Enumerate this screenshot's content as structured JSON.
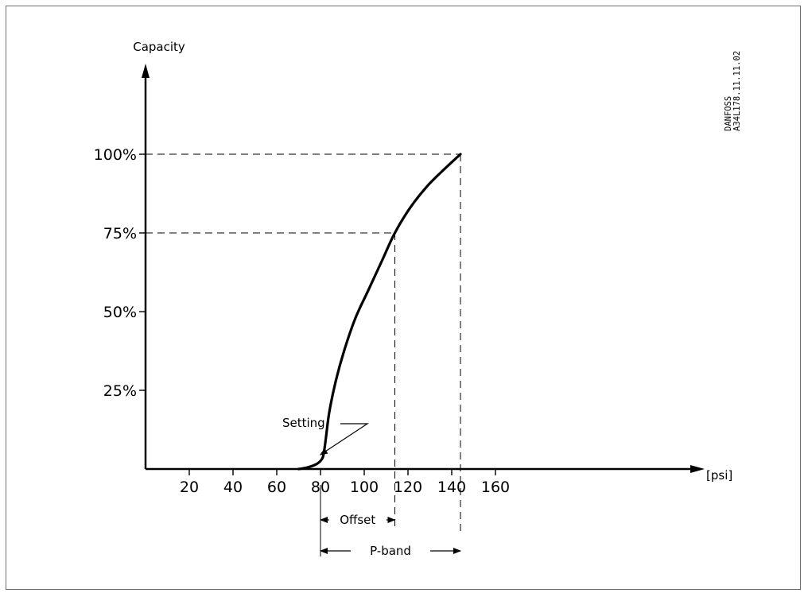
{
  "chart_data": {
    "type": "line",
    "ylabel": "Capacity",
    "xunit": "[psi]",
    "x_ticks": [
      20,
      40,
      60,
      80,
      100,
      120,
      140,
      160
    ],
    "y_ticks": [
      "25%",
      "50%",
      "75%",
      "100%"
    ],
    "xlim": [
      0,
      180
    ],
    "ylim": [
      0,
      125
    ],
    "grid": false,
    "series": [
      {
        "points": [
          {
            "x": 70,
            "y": 0
          },
          {
            "x": 74,
            "y": 0.5
          },
          {
            "x": 78,
            "y": 1.5
          },
          {
            "x": 80.5,
            "y": 3
          },
          {
            "x": 81.5,
            "y": 5
          },
          {
            "x": 82.5,
            "y": 10
          },
          {
            "x": 84,
            "y": 18
          },
          {
            "x": 87,
            "y": 28
          },
          {
            "x": 91,
            "y": 38
          },
          {
            "x": 96,
            "y": 48
          },
          {
            "x": 102,
            "y": 57
          },
          {
            "x": 108,
            "y": 66
          },
          {
            "x": 114,
            "y": 75
          },
          {
            "x": 121,
            "y": 83
          },
          {
            "x": 129,
            "y": 90
          },
          {
            "x": 137,
            "y": 95.5
          },
          {
            "x": 144,
            "y": 100
          }
        ]
      }
    ],
    "reference_lines": [
      {
        "y": 100,
        "x_to": 144
      },
      {
        "y": 75,
        "x_to": 114
      }
    ],
    "annotations": {
      "setting": {
        "label": "Setting",
        "x": 81,
        "y": 3
      },
      "offset": {
        "label": "Offset",
        "from": 80,
        "to": 114
      },
      "pband": {
        "label": "P-band",
        "from": 80,
        "to": 144
      }
    },
    "doc_code": [
      "DANFOSS",
      "A34L178.11.11.02"
    ]
  }
}
